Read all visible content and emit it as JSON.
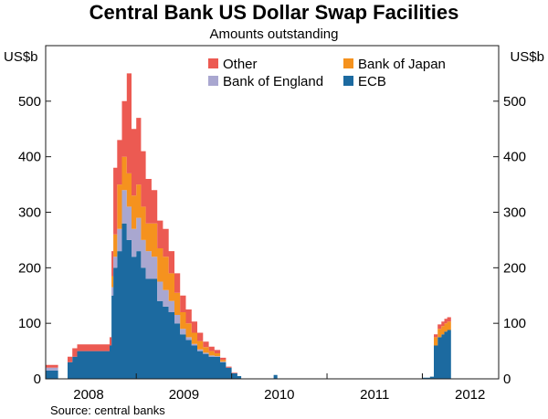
{
  "chart_data": {
    "type": "area",
    "stacked": true,
    "title": "Central Bank US Dollar Swap Facilities",
    "subtitle": "Amounts outstanding",
    "ylabel_left": "US$b",
    "ylabel_right": "US$b",
    "ylim": [
      0,
      600
    ],
    "yticks": [
      0,
      100,
      200,
      300,
      400,
      500
    ],
    "xlim": [
      2007.55,
      2012.3
    ],
    "xticks": [
      {
        "label": "2008",
        "value": 2008.0
      },
      {
        "label": "2009",
        "value": 2009.0
      },
      {
        "label": "2010",
        "value": 2010.0
      },
      {
        "label": "2011",
        "value": 2011.0
      },
      {
        "label": "2012",
        "value": 2012.0
      }
    ],
    "legend_placement": "top-center",
    "legend_order": [
      "Other",
      "Bank of Japan",
      "Bank of England",
      "ECB"
    ],
    "colors": {
      "ECB": "#1c6aa0",
      "Bank of England": "#a9a7d0",
      "Bank of Japan": "#f5921e",
      "Other": "#ec5a52"
    },
    "x": [
      2007.55,
      2007.62,
      2007.68,
      2007.73,
      2007.78,
      2007.83,
      2007.88,
      2007.95,
      2008.03,
      2008.1,
      2008.17,
      2008.2,
      2008.22,
      2008.24,
      2008.26,
      2008.3,
      2008.35,
      2008.4,
      2008.45,
      2008.5,
      2008.55,
      2008.6,
      2008.66,
      2008.72,
      2008.78,
      2008.84,
      2008.9,
      2008.96,
      2009.02,
      2009.08,
      2009.14,
      2009.2,
      2009.26,
      2009.32,
      2009.38,
      2009.44,
      2009.5,
      2009.56,
      2009.6,
      2009.7,
      2009.9,
      2009.94,
      2009.98,
      2010.5,
      2011.4,
      2011.5,
      2011.55,
      2011.58,
      2011.62,
      2011.66,
      2011.7,
      2011.73,
      2011.76,
      2011.8,
      2012.3
    ],
    "series": [
      {
        "name": "ECB",
        "values": [
          15,
          15,
          0,
          0,
          30,
          40,
          50,
          50,
          50,
          50,
          50,
          50,
          60,
          150,
          200,
          230,
          280,
          250,
          220,
          230,
          200,
          180,
          180,
          140,
          130,
          120,
          100,
          80,
          70,
          60,
          50,
          45,
          40,
          40,
          30,
          20,
          10,
          5,
          0,
          0,
          0,
          7,
          0,
          0,
          0,
          2,
          2,
          4,
          60,
          75,
          80,
          85,
          88,
          0,
          0
        ]
      },
      {
        "name": "Bank of England",
        "values": [
          5,
          5,
          0,
          0,
          0,
          0,
          0,
          0,
          0,
          0,
          0,
          0,
          0,
          15,
          20,
          40,
          60,
          60,
          50,
          60,
          50,
          50,
          40,
          35,
          30,
          20,
          15,
          10,
          5,
          3,
          3,
          2,
          2,
          1,
          1,
          0,
          0,
          0,
          0,
          0,
          0,
          0,
          0,
          0,
          0,
          0,
          0,
          0,
          0,
          0,
          0,
          0,
          0,
          0,
          0
        ]
      },
      {
        "name": "Bank of Japan",
        "values": [
          0,
          0,
          0,
          0,
          0,
          0,
          0,
          0,
          0,
          0,
          0,
          0,
          0,
          20,
          40,
          80,
          60,
          60,
          60,
          60,
          60,
          50,
          60,
          60,
          60,
          50,
          40,
          30,
          25,
          20,
          15,
          10,
          8,
          5,
          3,
          0,
          0,
          0,
          0,
          0,
          0,
          0,
          0,
          0,
          0,
          0,
          0,
          0,
          15,
          15,
          15,
          15,
          15,
          0,
          0
        ]
      },
      {
        "name": "Other",
        "values": [
          5,
          5,
          0,
          0,
          10,
          15,
          12,
          12,
          12,
          12,
          12,
          12,
          15,
          45,
          120,
          80,
          100,
          180,
          120,
          120,
          100,
          80,
          60,
          50,
          50,
          40,
          35,
          30,
          25,
          20,
          15,
          10,
          8,
          6,
          4,
          2,
          1,
          0,
          0,
          0,
          0,
          0,
          0,
          0,
          0,
          0,
          0,
          0,
          5,
          8,
          8,
          8,
          8,
          0,
          0
        ]
      }
    ],
    "source": "Source: central banks"
  }
}
